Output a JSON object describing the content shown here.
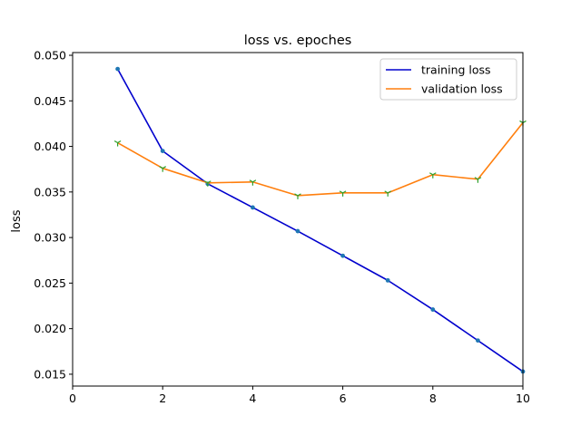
{
  "chart_data": {
    "type": "line",
    "title": "loss vs. epoches",
    "xlabel": "",
    "ylabel": "loss",
    "xlim": [
      0,
      10
    ],
    "ylim": [
      0.0137,
      0.0503
    ],
    "xticks": [
      0,
      2,
      4,
      6,
      8,
      10
    ],
    "xtick_labels": [
      "0",
      "2",
      "4",
      "6",
      "8",
      "10"
    ],
    "yticks": [
      0.015,
      0.02,
      0.025,
      0.03,
      0.035,
      0.04,
      0.045,
      0.05
    ],
    "ytick_labels": [
      "0.015",
      "0.020",
      "0.025",
      "0.030",
      "0.035",
      "0.040",
      "0.045",
      "0.050"
    ],
    "grid": false,
    "legend_position": "top-right",
    "x": [
      1,
      2,
      3,
      4,
      5,
      6,
      7,
      8,
      9,
      10
    ],
    "series": [
      {
        "name": "training loss",
        "color": "#0000cd",
        "marker_color": "#1f77b4",
        "marker": "dot",
        "values": [
          0.0485,
          0.0395,
          0.0359,
          0.0333,
          0.0307,
          0.028,
          0.0253,
          0.0221,
          0.0187,
          0.0153
        ]
      },
      {
        "name": "validation loss",
        "color": "#ff7f0e",
        "marker_color": "#2ca02c",
        "marker": "tri-down",
        "values": [
          0.0404,
          0.0376,
          0.036,
          0.0361,
          0.0346,
          0.0349,
          0.0349,
          0.0369,
          0.0364,
          0.0426
        ]
      }
    ]
  }
}
